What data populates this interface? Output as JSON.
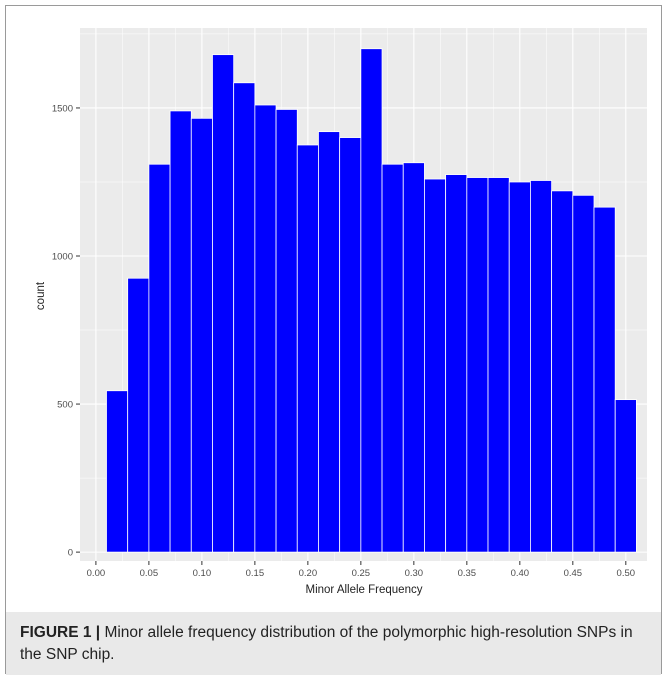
{
  "chart_data": {
    "type": "bar",
    "xlabel": "Minor Allele Frequency",
    "ylabel": "count",
    "xlim": [
      -0.015,
      0.52
    ],
    "ylim": [
      -30,
      1770
    ],
    "x_ticks": [
      "0.00",
      "0.05",
      "0.10",
      "0.15",
      "0.20",
      "0.25",
      "0.30",
      "0.35",
      "0.40",
      "0.45",
      "0.50"
    ],
    "y_ticks": [
      "0",
      "500",
      "1000",
      "1500"
    ],
    "bin_width": 0.02,
    "bins": [
      {
        "x": 0.02,
        "count": 545
      },
      {
        "x": 0.04,
        "count": 925
      },
      {
        "x": 0.06,
        "count": 1310
      },
      {
        "x": 0.08,
        "count": 1490
      },
      {
        "x": 0.1,
        "count": 1465
      },
      {
        "x": 0.12,
        "count": 1680
      },
      {
        "x": 0.14,
        "count": 1585
      },
      {
        "x": 0.16,
        "count": 1510
      },
      {
        "x": 0.18,
        "count": 1495
      },
      {
        "x": 0.2,
        "count": 1375
      },
      {
        "x": 0.22,
        "count": 1420
      },
      {
        "x": 0.24,
        "count": 1400
      },
      {
        "x": 0.26,
        "count": 1700
      },
      {
        "x": 0.28,
        "count": 1310
      },
      {
        "x": 0.3,
        "count": 1315
      },
      {
        "x": 0.32,
        "count": 1260
      },
      {
        "x": 0.34,
        "count": 1275
      },
      {
        "x": 0.36,
        "count": 1265
      },
      {
        "x": 0.38,
        "count": 1265
      },
      {
        "x": 0.4,
        "count": 1250
      },
      {
        "x": 0.42,
        "count": 1255
      },
      {
        "x": 0.44,
        "count": 1220
      },
      {
        "x": 0.46,
        "count": 1205
      },
      {
        "x": 0.48,
        "count": 1165
      },
      {
        "x": 0.5,
        "count": 515
      }
    ],
    "bar_color": "#0000ff",
    "panel_background": "#ebebeb",
    "grid": true,
    "legend": "none"
  },
  "caption": {
    "label": "FIGURE 1 |",
    "text": " Minor allele frequency distribution of the polymorphic high-resolution SNPs in the SNP chip."
  }
}
